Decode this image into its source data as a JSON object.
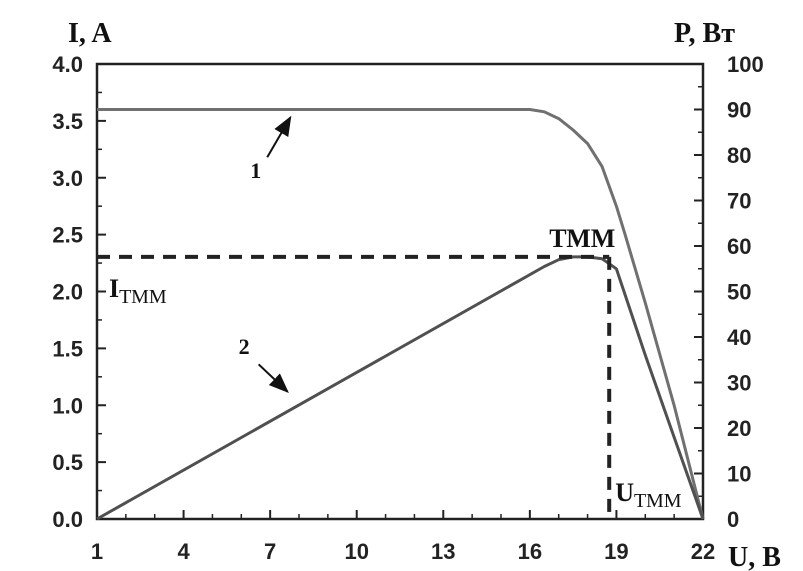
{
  "chart_data": {
    "type": "line",
    "xlabel": "U, В",
    "ylabel_left": "I, A",
    "ylabel_right": "P, Вт",
    "x_ticks": [
      1,
      4,
      7,
      10,
      13,
      16,
      19,
      22
    ],
    "y_left_ticks": [
      "0.0",
      "0.5",
      "1.0",
      "1.5",
      "2.0",
      "2.5",
      "3.0",
      "3.5",
      "4.0"
    ],
    "y_right_ticks": [
      "0",
      "10",
      "20",
      "30",
      "40",
      "50",
      "60",
      "70",
      "80",
      "90",
      "100"
    ],
    "xlim": [
      1,
      22
    ],
    "ylim_left": [
      0,
      4
    ],
    "ylim_right": [
      0,
      100
    ],
    "series": [
      {
        "name": "1",
        "axis": "left",
        "color": "#707070",
        "x": [
          1,
          16,
          16.5,
          17,
          17.5,
          18,
          18.5,
          19,
          19.3,
          20,
          21,
          22
        ],
        "y": [
          3.6,
          3.6,
          3.58,
          3.52,
          3.42,
          3.3,
          3.1,
          2.75,
          2.5,
          1.9,
          1.0,
          0
        ]
      },
      {
        "name": "2",
        "axis": "right",
        "color": "#505050",
        "x": [
          1,
          16.5,
          17,
          17.5,
          18,
          18.5,
          19,
          20,
          21,
          22
        ],
        "y": [
          0,
          55.5,
          57,
          57.6,
          57.6,
          57.2,
          55,
          36,
          18,
          0
        ]
      }
    ],
    "mpp": {
      "label": "ТММ",
      "x": 18.75,
      "i_label_main": "I",
      "i_label_sub": "ТММ",
      "u_label_main": "U",
      "u_label_sub": "ТММ"
    },
    "curve_labels": [
      {
        "text": "1",
        "tx": 6.5,
        "ty": 3.0,
        "ax0": 6.9,
        "ay0": 3.18,
        "ax1": 7.7,
        "ay1": 3.53,
        "axis": "left"
      },
      {
        "text": "2",
        "tx": 6.1,
        "ty": 1.45,
        "ax0": 6.6,
        "ay0": 1.36,
        "ax1": 7.6,
        "ay1": 1.12,
        "axis": "left"
      }
    ],
    "colors": {
      "axis": "#222222",
      "dash": "#222222"
    }
  }
}
